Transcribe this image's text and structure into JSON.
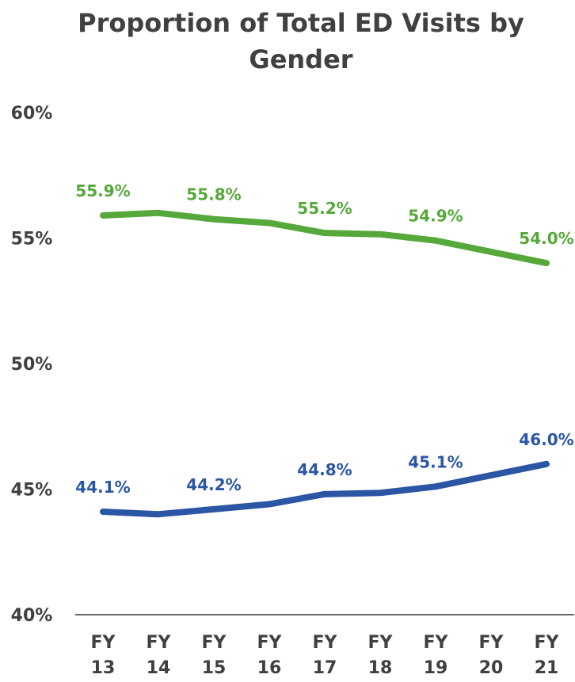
{
  "chart_data": {
    "type": "line",
    "title": "Proportion of Total ED Visits by Gender",
    "categories": [
      "FY 13",
      "FY 14",
      "FY 15",
      "FY 16",
      "FY 17",
      "FY 18",
      "FY 19",
      "FY 20",
      "FY 21"
    ],
    "series": [
      {
        "color": "#56a83a",
        "values": [
          55.9,
          56.0,
          55.75,
          55.6,
          55.2,
          55.15,
          54.9,
          54.45,
          54.0
        ],
        "value_labels": [
          "55.9%",
          null,
          "55.8%",
          null,
          "55.2%",
          null,
          "54.9%",
          null,
          "54.0%"
        ]
      },
      {
        "color": "#2a56a4",
        "values": [
          44.1,
          44.0,
          44.2,
          44.4,
          44.8,
          44.85,
          45.1,
          45.55,
          46.0
        ],
        "value_labels": [
          "44.1%",
          null,
          "44.2%",
          null,
          "44.8%",
          null,
          "45.1%",
          null,
          "46.0%"
        ]
      }
    ],
    "ylim": [
      40,
      60
    ],
    "yticks": [
      {
        "value": 40,
        "label": "40%"
      },
      {
        "value": 45,
        "label": "45%"
      },
      {
        "value": 50,
        "label": "50%"
      },
      {
        "value": 55,
        "label": "55%"
      },
      {
        "value": 60,
        "label": "60%"
      }
    ],
    "grid": false
  }
}
